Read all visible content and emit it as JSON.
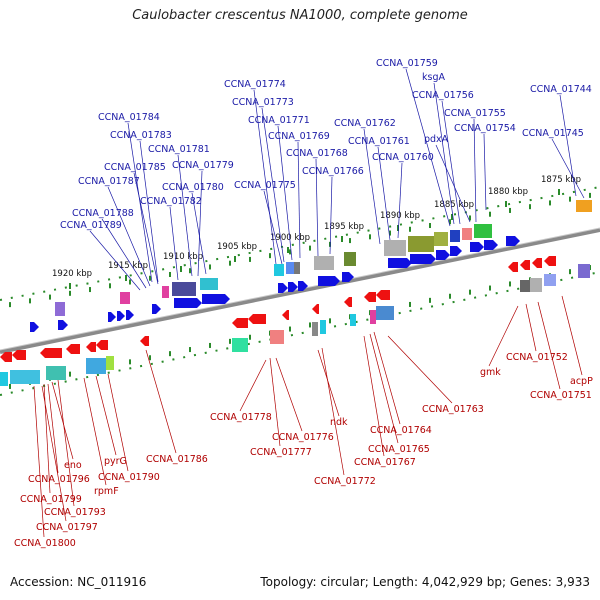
{
  "title": "Caulobacter crescentus NA1000, complete genome",
  "footer": {
    "accession": "Accession: NC_011916",
    "topology": "Topology: circular; Length: 4,042,929 bp; Genes: 3,933"
  },
  "colors": {
    "forward_label": "#1a1aa6",
    "reverse_label": "#b00000",
    "forward_gene": "#1010e0",
    "reverse_gene": "#ee1111",
    "tick": "#2a8a2a"
  },
  "scale_ticks": [
    "1920 kbp",
    "1915 kbp",
    "1910 kbp",
    "1905 kbp",
    "1900 kbp",
    "1895 kbp",
    "1890 kbp",
    "1885 kbp",
    "1880 kbp",
    "1875 kbp"
  ],
  "forward_genes": [
    "CCNA_01789",
    "CCNA_01788",
    "CCNA_01787",
    "CCNA_01785",
    "CCNA_01784",
    "CCNA_01783",
    "CCNA_01782",
    "CCNA_01781",
    "CCNA_01780",
    "CCNA_01779",
    "CCNA_01775",
    "CCNA_01774",
    "CCNA_01773",
    "CCNA_01771",
    "CCNA_01769",
    "CCNA_01768",
    "CCNA_01766",
    "CCNA_01762",
    "CCNA_01761",
    "CCNA_01760",
    "CCNA_01759",
    "ksgA",
    "CCNA_01756",
    "pdxA",
    "CCNA_01755",
    "CCNA_01754",
    "CCNA_01745",
    "CCNA_01744"
  ],
  "reverse_genes": [
    "CCNA_01800",
    "CCNA_01797",
    "CCNA_01799",
    "CCNA_01796",
    "eno",
    "CCNA_01793",
    "rpmF",
    "pyrG",
    "CCNA_01790",
    "CCNA_01786",
    "CCNA_01778",
    "CCNA_01776",
    "CCNA_01777",
    "ndk",
    "CCNA_01772",
    "CCNA_01767",
    "CCNA_01765",
    "CCNA_01764",
    "CCNA_01763",
    "gmk",
    "CCNA_01752",
    "CCNA_01751",
    "acpP"
  ]
}
